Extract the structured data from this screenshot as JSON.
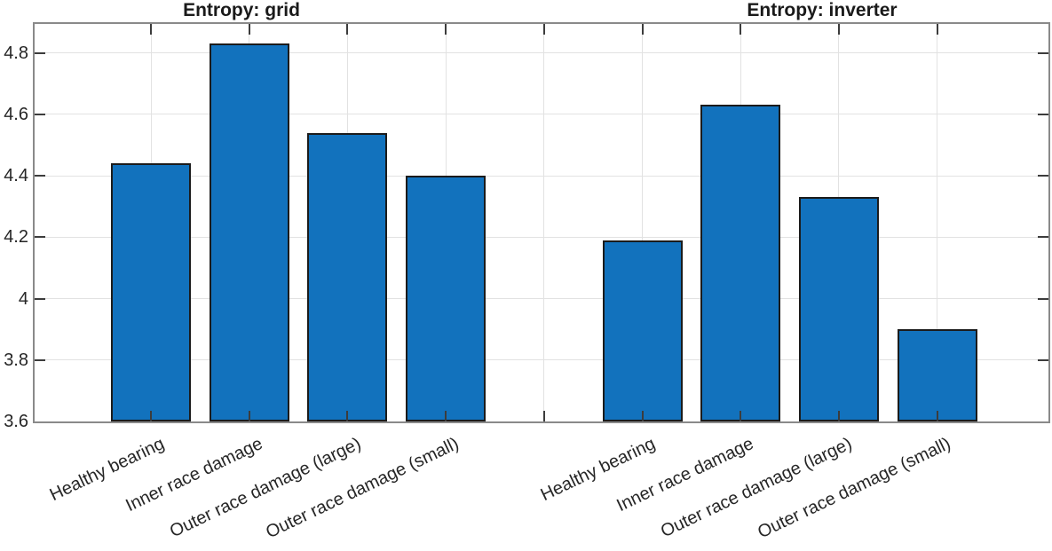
{
  "chart_data": [
    {
      "type": "bar",
      "title": "Entropy: grid",
      "categories": [
        "Healthy bearing",
        "Inner race damage",
        "Outer race damage (large)",
        "Outer race damage (small)"
      ],
      "values": [
        4.44,
        4.83,
        4.54,
        4.4
      ],
      "xlabel": "",
      "ylabel": "",
      "ylim": [
        3.6,
        4.9
      ],
      "ytick_labels": [
        "4.8",
        "4.6",
        "4.4",
        "4.2",
        "4",
        "3.8",
        "3.6"
      ],
      "grid": true,
      "legend_position": "none",
      "bar_color": "#1272bd"
    },
    {
      "type": "bar",
      "title": "Entropy: inverter",
      "categories": [
        "Healthy bearing",
        "Inner race damage",
        "Outer race damage (large)",
        "Outer race damage (small)"
      ],
      "values": [
        4.19,
        4.63,
        4.33,
        3.9
      ],
      "xlabel": "",
      "ylabel": "",
      "ylim": [
        3.6,
        4.9
      ],
      "ytick_labels": [
        "4.8",
        "4.6",
        "4.4",
        "4.2",
        "4",
        "3.8",
        "3.6"
      ],
      "grid": true,
      "legend_position": "none",
      "bar_color": "#1272bd"
    }
  ],
  "colors": {
    "background": "#ffffff",
    "bar_fill": "#1272bd",
    "bar_edge": "#1b1b1b",
    "grid_line": "#e2e2e2",
    "spine": "#8a8a8a",
    "tick_mark": "#3c3c3c",
    "tick_text": "#262626",
    "title_text": "#1a1a1a"
  }
}
